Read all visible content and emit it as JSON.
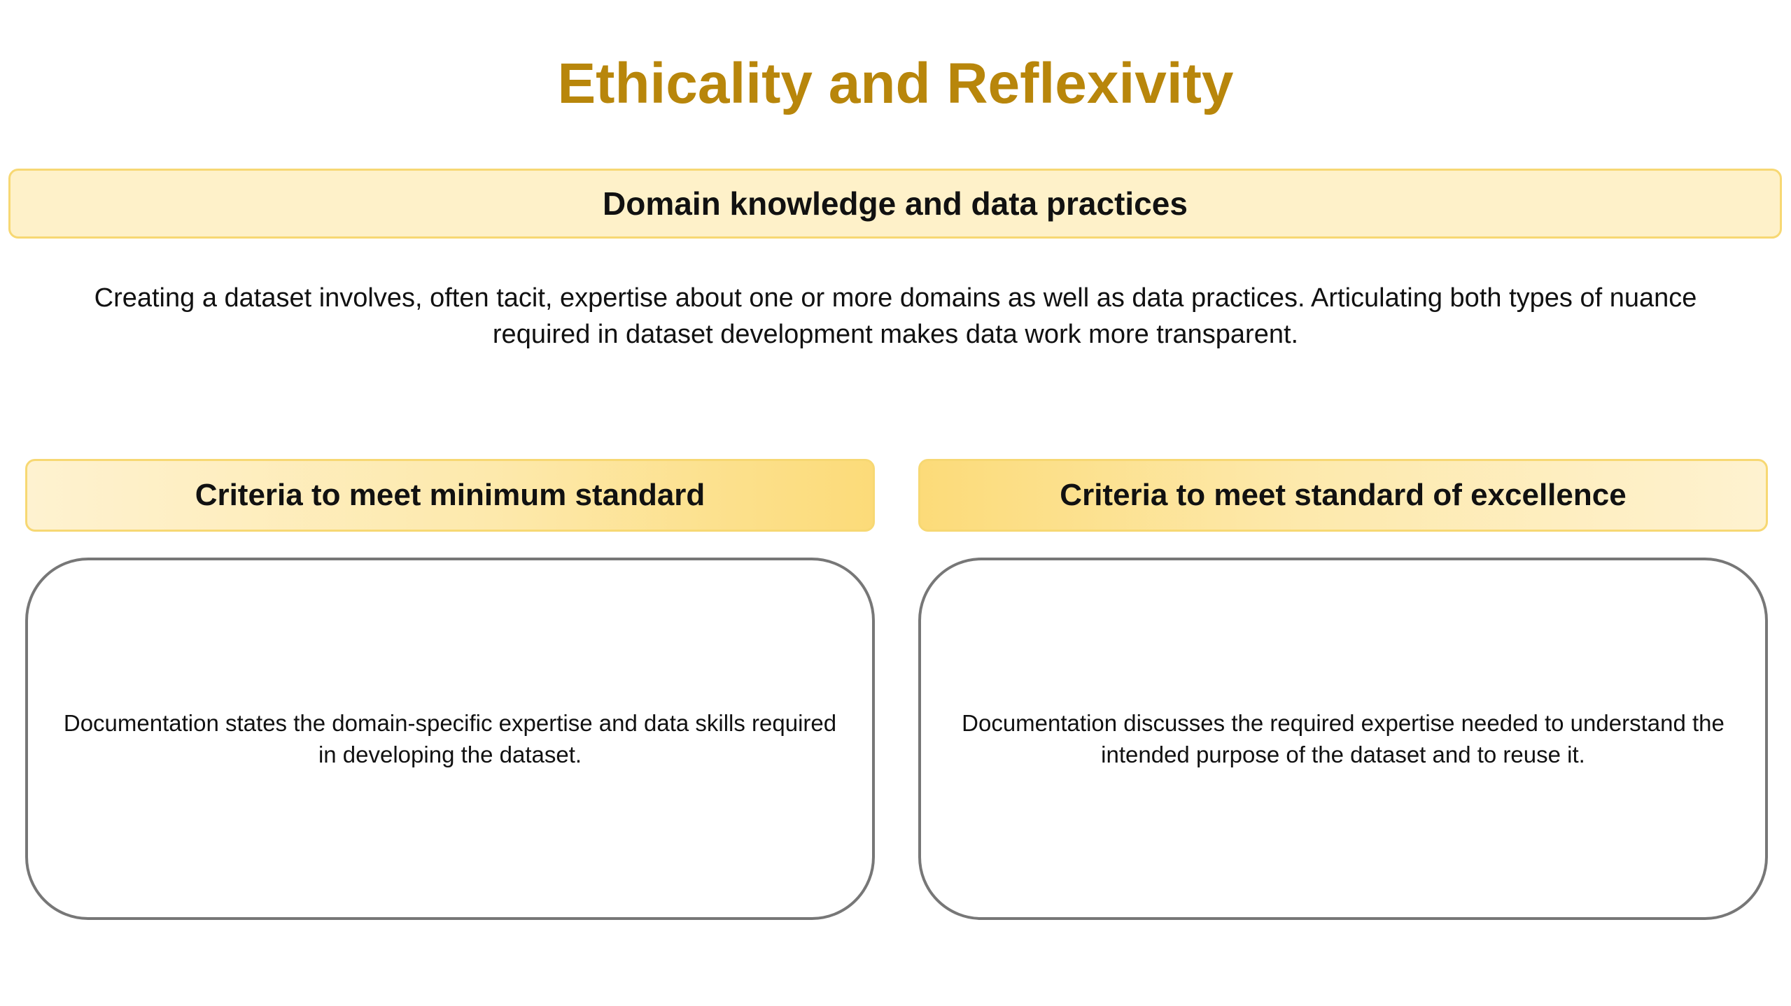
{
  "title": "Ethicality and Reflexivity",
  "section": {
    "heading": "Domain knowledge and data practices",
    "description": "Creating a dataset involves, often tacit, expertise about one or more domains as well as data practices. Articulating both types of nuance required in dataset development makes data work more transparent."
  },
  "criteria": {
    "minimum": {
      "heading": "Criteria to meet minimum standard",
      "text": "Documentation states the domain-specific expertise and data skills required in developing the dataset."
    },
    "excellence": {
      "heading": "Criteria to meet standard of excellence",
      "text": "Documentation discusses the required expertise needed to understand the intended purpose of the dataset and to reuse it."
    }
  },
  "colors": {
    "title": "#b8860b",
    "banner_fill": "#fef1c9",
    "banner_border": "#f7d873",
    "header_gradient_strong": "#fcdb79",
    "header_gradient_light": "#fef2d0",
    "card_border": "#777777"
  }
}
